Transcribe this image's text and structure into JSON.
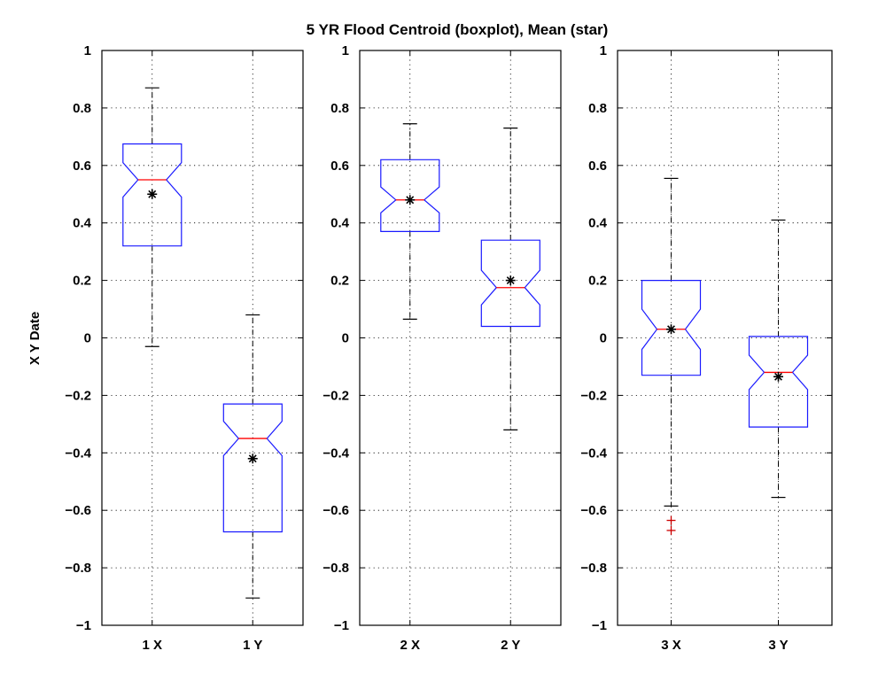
{
  "chart_data": {
    "type": "boxplot",
    "title": "5 YR Flood Centroid (boxplot), Mean (star)",
    "ylabel": "X Y Date",
    "ylim": [
      -1,
      1
    ],
    "yticks": [
      1,
      0.8,
      0.6,
      0.4,
      0.2,
      0,
      -0.2,
      -0.4,
      -0.6,
      -0.8,
      -1
    ],
    "ytick_labels": [
      "1",
      "0.8",
      "0.6",
      "0.4",
      "0.2",
      "0",
      "−0.2",
      "−0.4",
      "−0.6",
      "−0.8",
      "−1"
    ],
    "grid": true,
    "colors": {
      "box": "#1a1aff",
      "median": "#ff0000",
      "whisker": "#000000",
      "outlier": "#cc0000",
      "mean": "#000000"
    },
    "panels": [
      {
        "boxes": [
          {
            "label": "1 X",
            "whisker_low": -0.03,
            "q1": 0.32,
            "median": 0.55,
            "q3": 0.675,
            "whisker_high": 0.87,
            "mean": 0.5,
            "notch_low": 0.49,
            "notch_high": 0.61,
            "outliers": []
          },
          {
            "label": "1 Y",
            "whisker_low": -0.905,
            "q1": -0.675,
            "median": -0.35,
            "q3": -0.23,
            "whisker_high": 0.08,
            "mean": -0.42,
            "notch_low": -0.41,
            "notch_high": -0.29,
            "outliers": []
          }
        ]
      },
      {
        "boxes": [
          {
            "label": "2 X",
            "whisker_low": 0.065,
            "q1": 0.37,
            "median": 0.48,
            "q3": 0.62,
            "whisker_high": 0.745,
            "mean": 0.48,
            "notch_low": 0.435,
            "notch_high": 0.525,
            "outliers": []
          },
          {
            "label": "2 Y",
            "whisker_low": -0.32,
            "q1": 0.04,
            "median": 0.175,
            "q3": 0.34,
            "whisker_high": 0.73,
            "mean": 0.2,
            "notch_low": 0.115,
            "notch_high": 0.235,
            "outliers": []
          }
        ]
      },
      {
        "boxes": [
          {
            "label": "3 X",
            "whisker_low": -0.585,
            "q1": -0.13,
            "median": 0.03,
            "q3": 0.2,
            "whisker_high": 0.555,
            "mean": 0.03,
            "notch_low": -0.04,
            "notch_high": 0.1,
            "outliers": [
              -0.635,
              -0.67
            ]
          },
          {
            "label": "3 Y",
            "whisker_low": -0.555,
            "q1": -0.31,
            "median": -0.12,
            "q3": 0.005,
            "whisker_high": 0.41,
            "mean": -0.135,
            "notch_low": -0.18,
            "notch_high": -0.06,
            "outliers": []
          }
        ]
      }
    ]
  }
}
